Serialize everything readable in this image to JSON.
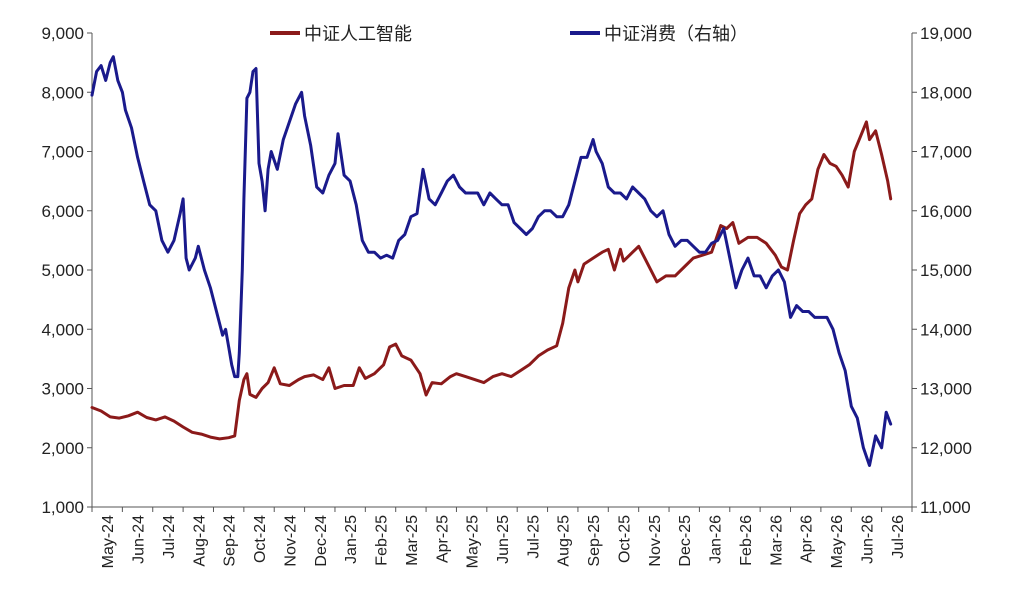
{
  "chart_data": {
    "type": "line",
    "title": "",
    "xlabel": "",
    "ylabel": "",
    "x_categories": [
      "May-24",
      "Jun-24",
      "Jul-24",
      "Aug-24",
      "Sep-24",
      "Oct-24",
      "Nov-24",
      "Dec-24",
      "Jan-25",
      "Feb-25",
      "Mar-25",
      "Apr-25",
      "May-25",
      "Jun-25",
      "Jul-25",
      "Aug-25",
      "Sep-25",
      "Oct-25",
      "Nov-25",
      "Dec-25",
      "Jan-26",
      "Feb-26",
      "Mar-26",
      "Apr-26",
      "May-26",
      "Jun-26",
      "Jul-26"
    ],
    "ylim_left": [
      1000,
      9000
    ],
    "yticks_left": [
      "1,000",
      "2,000",
      "3,000",
      "4,000",
      "5,000",
      "6,000",
      "7,000",
      "8,000",
      "9,000"
    ],
    "ylim_right": [
      11000,
      19000
    ],
    "yticks_right": [
      "11,000",
      "12,000",
      "13,000",
      "14,000",
      "15,000",
      "16,000",
      "17,000",
      "18,000",
      "19,000"
    ],
    "legend_position": "top-center",
    "grid": false,
    "series": [
      {
        "name": "中证人工智能",
        "axis": "left",
        "color": "#8B1A1A",
        "points": [
          [
            0.0,
            2680
          ],
          [
            0.3,
            2620
          ],
          [
            0.6,
            2520
          ],
          [
            0.9,
            2500
          ],
          [
            1.2,
            2540
          ],
          [
            1.5,
            2600
          ],
          [
            1.8,
            2510
          ],
          [
            2.1,
            2470
          ],
          [
            2.4,
            2520
          ],
          [
            2.7,
            2450
          ],
          [
            3.0,
            2350
          ],
          [
            3.3,
            2260
          ],
          [
            3.6,
            2230
          ],
          [
            3.9,
            2180
          ],
          [
            4.2,
            2150
          ],
          [
            4.5,
            2170
          ],
          [
            4.7,
            2200
          ],
          [
            4.85,
            2800
          ],
          [
            5.0,
            3150
          ],
          [
            5.1,
            3250
          ],
          [
            5.2,
            2900
          ],
          [
            5.4,
            2850
          ],
          [
            5.6,
            3000
          ],
          [
            5.8,
            3100
          ],
          [
            6.0,
            3350
          ],
          [
            6.2,
            3080
          ],
          [
            6.5,
            3050
          ],
          [
            6.8,
            3150
          ],
          [
            7.0,
            3200
          ],
          [
            7.3,
            3230
          ],
          [
            7.6,
            3150
          ],
          [
            7.8,
            3350
          ],
          [
            8.0,
            3000
          ],
          [
            8.3,
            3050
          ],
          [
            8.6,
            3050
          ],
          [
            8.8,
            3350
          ],
          [
            9.0,
            3170
          ],
          [
            9.3,
            3250
          ],
          [
            9.6,
            3400
          ],
          [
            9.8,
            3700
          ],
          [
            10.0,
            3750
          ],
          [
            10.2,
            3550
          ],
          [
            10.5,
            3480
          ],
          [
            10.8,
            3250
          ],
          [
            11.0,
            2890
          ],
          [
            11.2,
            3100
          ],
          [
            11.5,
            3080
          ],
          [
            11.8,
            3200
          ],
          [
            12.0,
            3250
          ],
          [
            12.3,
            3200
          ],
          [
            12.6,
            3150
          ],
          [
            12.9,
            3100
          ],
          [
            13.2,
            3200
          ],
          [
            13.5,
            3250
          ],
          [
            13.8,
            3200
          ],
          [
            14.1,
            3300
          ],
          [
            14.4,
            3400
          ],
          [
            14.7,
            3550
          ],
          [
            15.0,
            3650
          ],
          [
            15.3,
            3720
          ],
          [
            15.5,
            4100
          ],
          [
            15.7,
            4700
          ],
          [
            15.9,
            5000
          ],
          [
            16.0,
            4800
          ],
          [
            16.2,
            5100
          ],
          [
            16.5,
            5200
          ],
          [
            16.8,
            5300
          ],
          [
            17.0,
            5350
          ],
          [
            17.2,
            5000
          ],
          [
            17.4,
            5350
          ],
          [
            17.5,
            5150
          ],
          [
            17.8,
            5300
          ],
          [
            18.0,
            5400
          ],
          [
            18.3,
            5100
          ],
          [
            18.6,
            4800
          ],
          [
            18.9,
            4900
          ],
          [
            19.2,
            4900
          ],
          [
            19.5,
            5050
          ],
          [
            19.8,
            5200
          ],
          [
            20.1,
            5250
          ],
          [
            20.4,
            5300
          ],
          [
            20.7,
            5750
          ],
          [
            20.9,
            5700
          ],
          [
            21.1,
            5800
          ],
          [
            21.3,
            5450
          ],
          [
            21.6,
            5550
          ],
          [
            21.9,
            5550
          ],
          [
            22.2,
            5450
          ],
          [
            22.5,
            5250
          ],
          [
            22.7,
            5050
          ],
          [
            22.9,
            5000
          ],
          [
            23.1,
            5500
          ],
          [
            23.3,
            5950
          ],
          [
            23.5,
            6100
          ],
          [
            23.7,
            6200
          ],
          [
            23.9,
            6700
          ],
          [
            24.1,
            6950
          ],
          [
            24.3,
            6800
          ],
          [
            24.5,
            6750
          ],
          [
            24.7,
            6600
          ],
          [
            24.9,
            6400
          ],
          [
            25.1,
            7000
          ],
          [
            25.3,
            7250
          ],
          [
            25.5,
            7500
          ],
          [
            25.6,
            7200
          ],
          [
            25.8,
            7350
          ],
          [
            26.0,
            6950
          ],
          [
            26.2,
            6500
          ],
          [
            26.3,
            6200
          ]
        ]
      },
      {
        "name": "中证消费（右轴）",
        "axis": "right",
        "color": "#1A1A8C",
        "points": [
          [
            0.0,
            17950
          ],
          [
            0.15,
            18350
          ],
          [
            0.3,
            18450
          ],
          [
            0.45,
            18200
          ],
          [
            0.6,
            18500
          ],
          [
            0.7,
            18600
          ],
          [
            0.85,
            18200
          ],
          [
            1.0,
            18000
          ],
          [
            1.1,
            17700
          ],
          [
            1.3,
            17400
          ],
          [
            1.5,
            16900
          ],
          [
            1.7,
            16500
          ],
          [
            1.9,
            16100
          ],
          [
            2.1,
            16000
          ],
          [
            2.3,
            15500
          ],
          [
            2.5,
            15300
          ],
          [
            2.7,
            15500
          ],
          [
            2.9,
            15950
          ],
          [
            3.0,
            16200
          ],
          [
            3.1,
            15200
          ],
          [
            3.2,
            15000
          ],
          [
            3.4,
            15200
          ],
          [
            3.5,
            15400
          ],
          [
            3.7,
            15000
          ],
          [
            3.9,
            14700
          ],
          [
            4.1,
            14300
          ],
          [
            4.3,
            13900
          ],
          [
            4.4,
            14000
          ],
          [
            4.5,
            13700
          ],
          [
            4.6,
            13400
          ],
          [
            4.7,
            13200
          ],
          [
            4.8,
            13200
          ],
          [
            4.85,
            13600
          ],
          [
            4.95,
            15000
          ],
          [
            5.0,
            16200
          ],
          [
            5.1,
            17900
          ],
          [
            5.2,
            18000
          ],
          [
            5.3,
            18350
          ],
          [
            5.4,
            18400
          ],
          [
            5.5,
            16800
          ],
          [
            5.6,
            16500
          ],
          [
            5.7,
            16000
          ],
          [
            5.8,
            16700
          ],
          [
            5.9,
            17000
          ],
          [
            6.1,
            16700
          ],
          [
            6.3,
            17200
          ],
          [
            6.5,
            17500
          ],
          [
            6.7,
            17800
          ],
          [
            6.9,
            18000
          ],
          [
            7.0,
            17600
          ],
          [
            7.2,
            17100
          ],
          [
            7.4,
            16400
          ],
          [
            7.6,
            16300
          ],
          [
            7.8,
            16600
          ],
          [
            8.0,
            16800
          ],
          [
            8.1,
            17300
          ],
          [
            8.3,
            16600
          ],
          [
            8.5,
            16500
          ],
          [
            8.7,
            16100
          ],
          [
            8.9,
            15500
          ],
          [
            9.1,
            15300
          ],
          [
            9.3,
            15300
          ],
          [
            9.5,
            15200
          ],
          [
            9.7,
            15250
          ],
          [
            9.9,
            15200
          ],
          [
            10.1,
            15500
          ],
          [
            10.3,
            15600
          ],
          [
            10.5,
            15900
          ],
          [
            10.7,
            15950
          ],
          [
            10.9,
            16700
          ],
          [
            11.1,
            16200
          ],
          [
            11.3,
            16100
          ],
          [
            11.5,
            16300
          ],
          [
            11.7,
            16500
          ],
          [
            11.9,
            16600
          ],
          [
            12.1,
            16400
          ],
          [
            12.3,
            16300
          ],
          [
            12.5,
            16300
          ],
          [
            12.7,
            16300
          ],
          [
            12.9,
            16100
          ],
          [
            13.1,
            16300
          ],
          [
            13.3,
            16200
          ],
          [
            13.5,
            16100
          ],
          [
            13.7,
            16100
          ],
          [
            13.9,
            15800
          ],
          [
            14.1,
            15700
          ],
          [
            14.3,
            15600
          ],
          [
            14.5,
            15700
          ],
          [
            14.7,
            15900
          ],
          [
            14.9,
            16000
          ],
          [
            15.1,
            16000
          ],
          [
            15.3,
            15900
          ],
          [
            15.5,
            15900
          ],
          [
            15.7,
            16100
          ],
          [
            15.9,
            16500
          ],
          [
            16.1,
            16900
          ],
          [
            16.3,
            16900
          ],
          [
            16.5,
            17200
          ],
          [
            16.6,
            17000
          ],
          [
            16.8,
            16800
          ],
          [
            17.0,
            16400
          ],
          [
            17.2,
            16300
          ],
          [
            17.4,
            16300
          ],
          [
            17.6,
            16200
          ],
          [
            17.8,
            16400
          ],
          [
            18.0,
            16300
          ],
          [
            18.2,
            16200
          ],
          [
            18.4,
            16000
          ],
          [
            18.6,
            15900
          ],
          [
            18.8,
            16000
          ],
          [
            19.0,
            15600
          ],
          [
            19.2,
            15400
          ],
          [
            19.4,
            15500
          ],
          [
            19.6,
            15500
          ],
          [
            19.8,
            15400
          ],
          [
            20.0,
            15300
          ],
          [
            20.2,
            15300
          ],
          [
            20.4,
            15450
          ],
          [
            20.6,
            15500
          ],
          [
            20.8,
            15700
          ],
          [
            21.0,
            15200
          ],
          [
            21.2,
            14700
          ],
          [
            21.4,
            15000
          ],
          [
            21.6,
            15200
          ],
          [
            21.8,
            14900
          ],
          [
            22.0,
            14900
          ],
          [
            22.2,
            14700
          ],
          [
            22.4,
            14900
          ],
          [
            22.6,
            15000
          ],
          [
            22.8,
            14800
          ],
          [
            23.0,
            14200
          ],
          [
            23.2,
            14400
          ],
          [
            23.4,
            14300
          ],
          [
            23.6,
            14300
          ],
          [
            23.8,
            14200
          ],
          [
            24.0,
            14200
          ],
          [
            24.2,
            14200
          ],
          [
            24.4,
            14000
          ],
          [
            24.6,
            13600
          ],
          [
            24.8,
            13300
          ],
          [
            25.0,
            12700
          ],
          [
            25.2,
            12500
          ],
          [
            25.4,
            12000
          ],
          [
            25.6,
            11700
          ],
          [
            25.8,
            12200
          ],
          [
            26.0,
            12000
          ],
          [
            26.15,
            12600
          ],
          [
            26.3,
            12400
          ]
        ]
      }
    ]
  }
}
